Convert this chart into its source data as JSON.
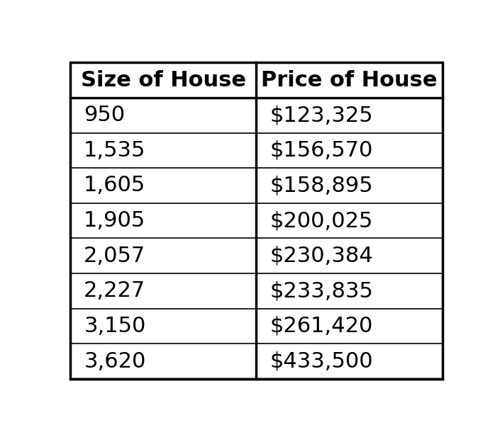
{
  "headers": [
    "Size of House",
    "Price of House"
  ],
  "rows": [
    [
      "950",
      "$123,325"
    ],
    [
      "1,535",
      "$156,570"
    ],
    [
      "1,605",
      "$158,895"
    ],
    [
      "1,905",
      "$200,025"
    ],
    [
      "2,057",
      "$230,384"
    ],
    [
      "2,227",
      "$233,835"
    ],
    [
      "3,150",
      "$261,420"
    ],
    [
      "3,620",
      "$433,500"
    ]
  ],
  "border_color": "#000000",
  "header_fontsize": 22,
  "row_fontsize": 22,
  "header_fontweight": "bold",
  "row_fontweight": "normal",
  "outer_border_lw": 2.5,
  "inner_border_lw": 1.2,
  "header_row_lw": 2.5,
  "fig_bg": "#ffffff"
}
